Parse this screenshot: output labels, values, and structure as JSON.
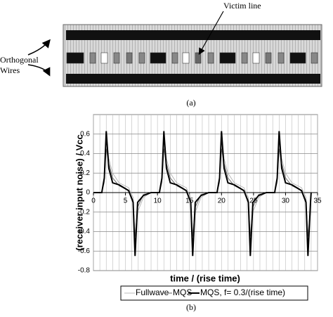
{
  "diagram": {
    "label": "Victim line",
    "left_label": [
      "Orthogonal",
      "Wires"
    ],
    "caption": "(a)"
  },
  "chart_data": {
    "type": "line",
    "x_label": "time / (rise time)",
    "y_label": "(receiver input noise) / Vcc",
    "caption": "(b)",
    "x": [
      0,
      1.3,
      1.7,
      2,
      2.4,
      3,
      4,
      5.5,
      6.2,
      6.5,
      6.9,
      7.8,
      9,
      10.3,
      10.7,
      11,
      11.4,
      12,
      13,
      14.5,
      15.2,
      15.5,
      15.9,
      16.8,
      18,
      19.3,
      19.7,
      20,
      20.4,
      21,
      22,
      23.5,
      24.2,
      24.5,
      24.9,
      25.8,
      27,
      28.3,
      28.7,
      29,
      29.4,
      30,
      31,
      32.5,
      33.2,
      33.5,
      33.9,
      34
    ],
    "series": [
      {
        "name": "Fullwave",
        "color": "#aaaaaa",
        "values": [
          0,
          0,
          0.1,
          0.6,
          0.35,
          0.2,
          0.1,
          0.05,
          -0.05,
          -0.6,
          -0.2,
          -0.05,
          0,
          0,
          0.1,
          0.6,
          0.35,
          0.2,
          0.1,
          0.05,
          -0.05,
          -0.6,
          -0.2,
          -0.05,
          0,
          0,
          0.1,
          0.6,
          0.35,
          0.2,
          0.1,
          0.05,
          -0.05,
          -0.6,
          -0.2,
          -0.05,
          0,
          0,
          0.1,
          0.6,
          0.35,
          0.2,
          0.1,
          0.05,
          -0.05,
          -0.6,
          -0.2,
          0
        ]
      },
      {
        "name": "MQS",
        "color": "#666666",
        "values": [
          0,
          0,
          0.12,
          0.45,
          0.3,
          0.15,
          0.07,
          0.02,
          -0.08,
          -0.45,
          -0.15,
          -0.02,
          0,
          0,
          0.12,
          0.45,
          0.3,
          0.15,
          0.07,
          0.02,
          -0.08,
          -0.45,
          -0.15,
          -0.02,
          0,
          0,
          0.12,
          0.45,
          0.3,
          0.15,
          0.07,
          0.02,
          -0.08,
          -0.45,
          -0.15,
          -0.02,
          0,
          0,
          0.12,
          0.45,
          0.3,
          0.15,
          0.07,
          0.02,
          -0.08,
          -0.45,
          -0.15,
          0
        ]
      },
      {
        "name": "MQS, f= 0.3/(rise time)",
        "color": "#000000",
        "values": [
          0,
          0,
          0.15,
          0.63,
          0.25,
          0.1,
          0.08,
          0.02,
          -0.1,
          -0.65,
          -0.1,
          -0.03,
          0,
          0,
          0.15,
          0.63,
          0.25,
          0.1,
          0.08,
          0.02,
          -0.1,
          -0.65,
          -0.1,
          -0.03,
          0,
          0,
          0.15,
          0.63,
          0.25,
          0.1,
          0.08,
          0.02,
          -0.1,
          -0.65,
          -0.1,
          -0.03,
          0,
          0,
          0.15,
          0.63,
          0.25,
          0.1,
          0.08,
          0.02,
          -0.1,
          -0.65,
          -0.1,
          0
        ]
      }
    ],
    "xlim": [
      0,
      35
    ],
    "xticks": [
      0,
      5,
      10,
      15,
      20,
      25,
      30,
      35
    ],
    "ylim": [
      -0.8,
      0.8
    ],
    "yticks": [
      -0.8,
      -0.6,
      -0.4,
      -0.2,
      0,
      0.2,
      0.4,
      0.6
    ],
    "grid": true
  }
}
